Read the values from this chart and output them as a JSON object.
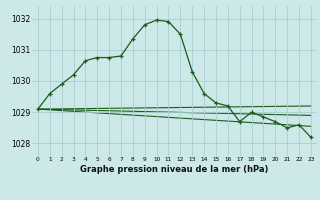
{
  "title": "Graphe pression niveau de la mer (hPa)",
  "background_color": "#cce8e8",
  "grid_color": "#aacece",
  "line_color": "#1a5c1a",
  "xlim": [
    -0.5,
    23.5
  ],
  "ylim": [
    1027.6,
    1032.4
  ],
  "yticks": [
    1028,
    1029,
    1030,
    1031,
    1032
  ],
  "xticks": [
    0,
    1,
    2,
    3,
    4,
    5,
    6,
    7,
    8,
    9,
    10,
    11,
    12,
    13,
    14,
    15,
    16,
    17,
    18,
    19,
    20,
    21,
    22,
    23
  ],
  "main_x": [
    0,
    1,
    2,
    3,
    4,
    5,
    6,
    7,
    8,
    9,
    10,
    11,
    12,
    13,
    14,
    15,
    16,
    17,
    18,
    19,
    20,
    21,
    22,
    23
  ],
  "main_y": [
    1029.1,
    1029.6,
    1029.9,
    1030.2,
    1030.65,
    1030.75,
    1030.75,
    1030.8,
    1031.35,
    1031.8,
    1031.95,
    1031.9,
    1031.5,
    1030.3,
    1029.6,
    1029.3,
    1029.2,
    1028.7,
    1029.0,
    1028.85,
    1028.7,
    1028.5,
    1028.6,
    1028.2
  ],
  "trend_lines": [
    {
      "x": [
        0,
        23
      ],
      "y": [
        1029.1,
        1029.2
      ]
    },
    {
      "x": [
        0,
        23
      ],
      "y": [
        1029.1,
        1028.9
      ]
    },
    {
      "x": [
        0,
        23
      ],
      "y": [
        1029.1,
        1028.55
      ]
    }
  ]
}
